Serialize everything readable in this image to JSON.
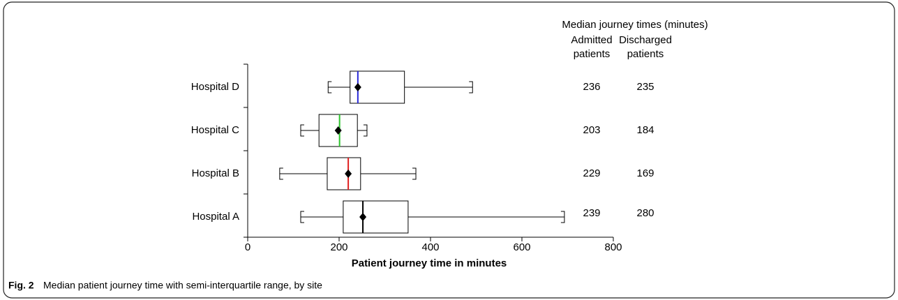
{
  "chart_data": {
    "type": "boxplot",
    "categories": [
      "Hospital D",
      "Hospital C",
      "Hospital B",
      "Hospital A"
    ],
    "series": [
      {
        "name": "Hospital D",
        "color": "#2a2ad8",
        "low": 176,
        "q1": 224,
        "median": 241,
        "q3": 343,
        "high": 492,
        "mean": 241
      },
      {
        "name": "Hospital C",
        "color": "#2ec42e",
        "low": 116,
        "q1": 156,
        "median": 201,
        "q3": 240,
        "high": 261,
        "mean": 198
      },
      {
        "name": "Hospital B",
        "color": "#e02020",
        "low": 70,
        "q1": 174,
        "median": 220,
        "q3": 247,
        "high": 368,
        "mean": 220
      },
      {
        "name": "Hospital A",
        "color": "#000000",
        "low": 116,
        "q1": 209,
        "median": 252,
        "q3": 351,
        "high": 693,
        "mean": 252
      }
    ],
    "xlim": [
      0,
      800
    ],
    "xticks": [
      0,
      200,
      400,
      600,
      800
    ],
    "xlabel": "Patient journey time in minutes",
    "table": {
      "title": "Median journey times (minutes)",
      "columns": [
        [
          "Admitted",
          "patients"
        ],
        [
          "Discharged",
          "patients"
        ]
      ],
      "rows": [
        [
          236,
          235
        ],
        [
          203,
          184
        ],
        [
          229,
          169
        ],
        [
          239,
          280
        ]
      ]
    }
  },
  "caption": {
    "label": "Fig. 2",
    "text": "Median patient journey time with semi-interquartile range, by site"
  }
}
